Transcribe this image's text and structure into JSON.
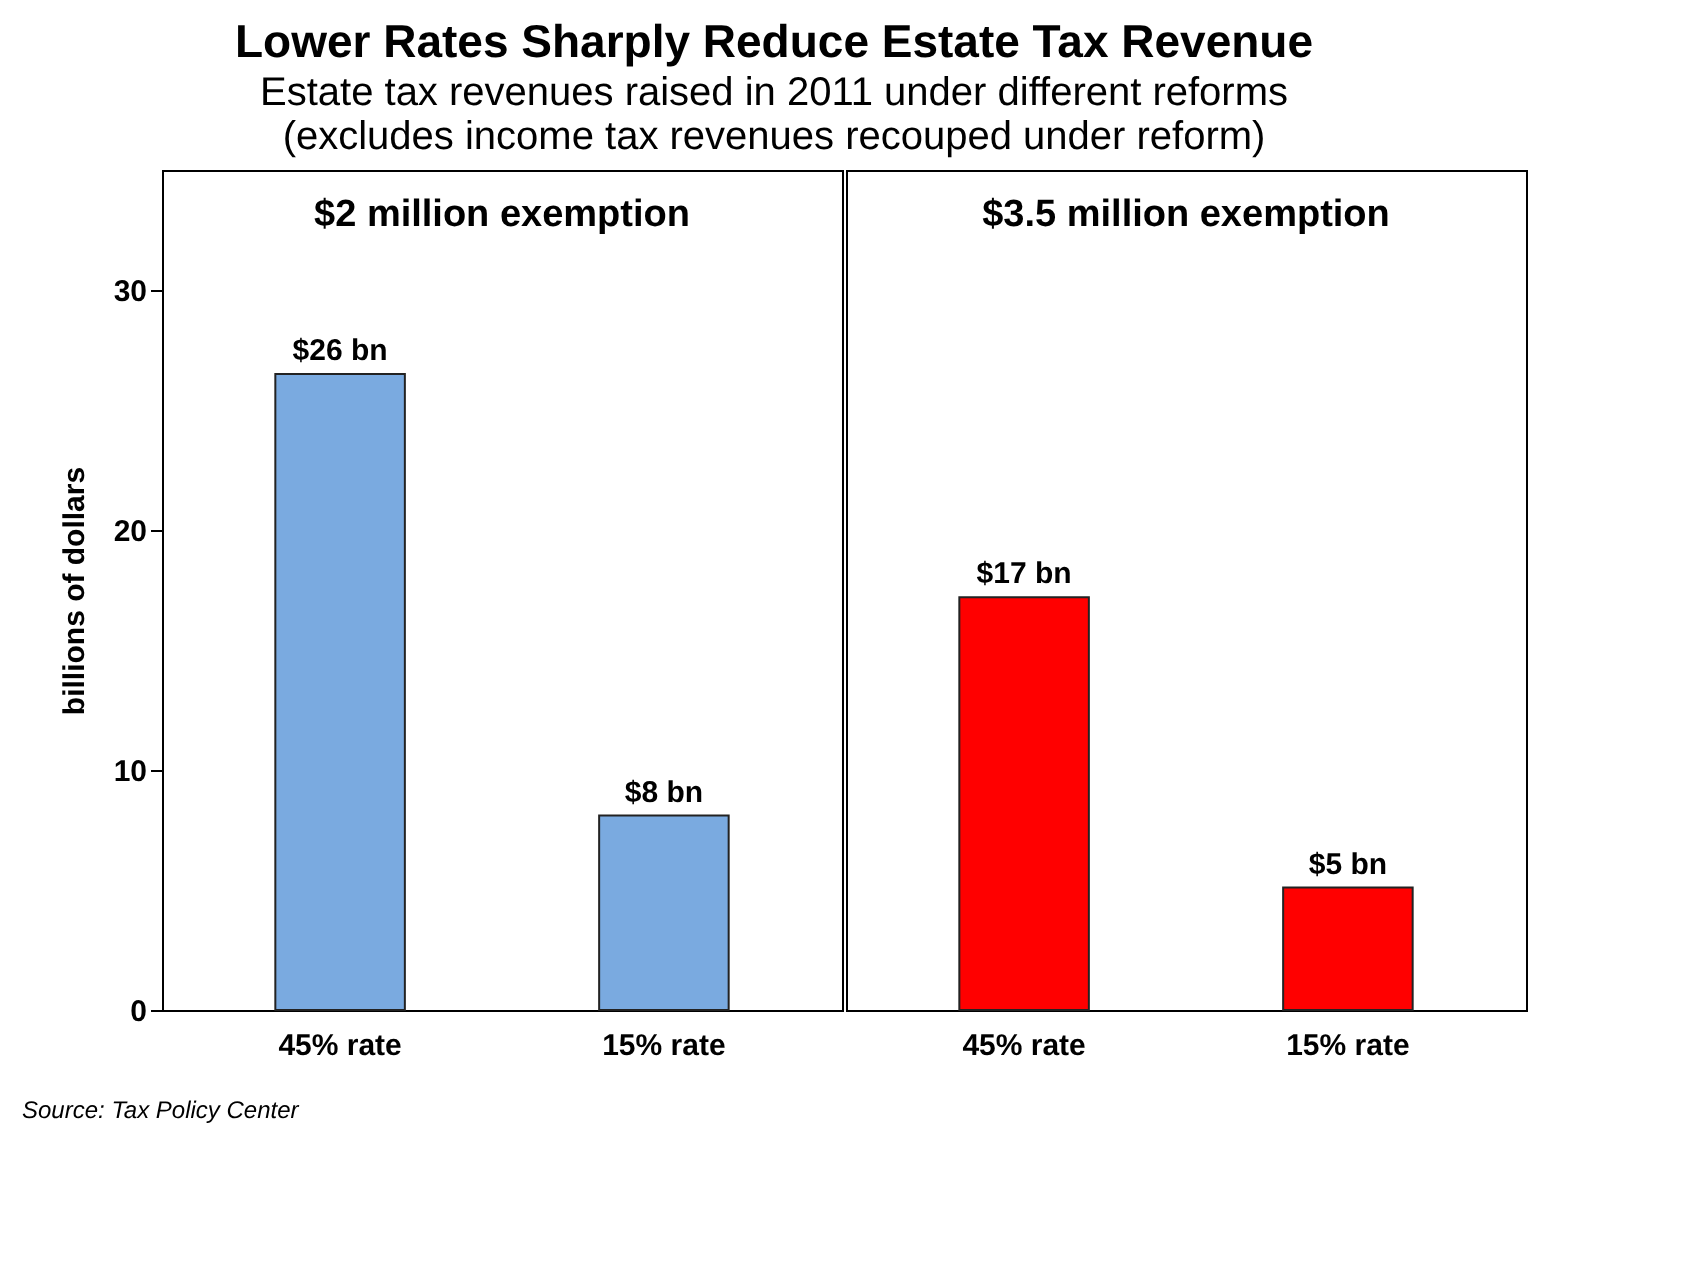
{
  "chart_data": [
    {
      "type": "bar",
      "title": "Lower Rates Sharply Reduce Estate Tax Revenue",
      "subtitle": "Estate tax revenues raised in 2011 under different reforms\n(excludes income tax revenues recouped under reform)",
      "ylabel": "billions of dollars",
      "annotations": [
        "$2 million exemption",
        "Source: Tax Policy Center"
      ],
      "categories": [
        "45% rate",
        "15% rate"
      ],
      "values": [
        26.5,
        8.1
      ],
      "value_labels": [
        "$26 bn",
        "$8 bn"
      ],
      "color": "#7aaae0",
      "ylim": [
        0,
        35
      ],
      "yticks": [
        0,
        10,
        20,
        30
      ],
      "grid": false
    },
    {
      "type": "bar",
      "annotations": [
        "$3.5 million exemption"
      ],
      "categories": [
        "45% rate",
        "15% rate"
      ],
      "values": [
        17.2,
        5.1
      ],
      "value_labels": [
        "$17 bn",
        "$5 bn"
      ],
      "color": "#ff0000",
      "ylim": [
        0,
        35
      ],
      "yticks": [
        0,
        10,
        20,
        30
      ],
      "tick_labels": "x",
      "grid": false
    }
  ]
}
